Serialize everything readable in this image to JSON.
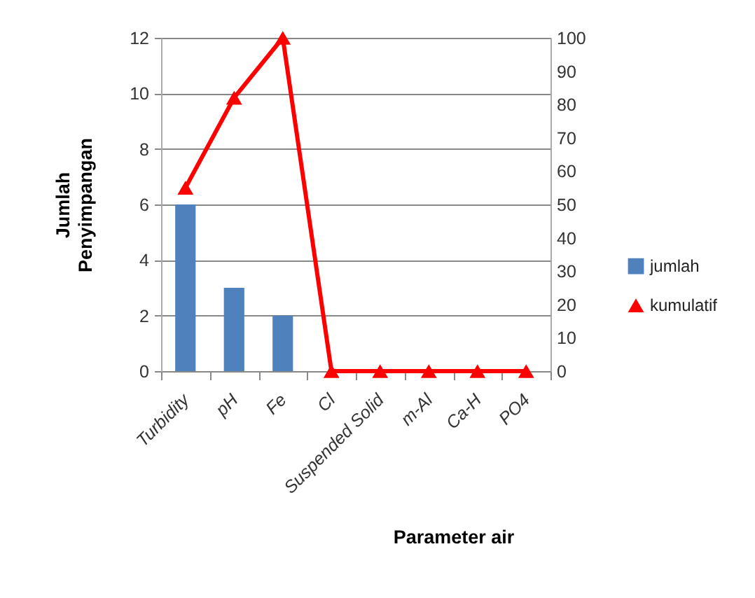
{
  "chart_data": {
    "type": "bar",
    "xlabel": "Parameter air",
    "ylabel": "Jumlah Penyimpangan",
    "categories": [
      "Turbidity",
      "pH",
      "Fe",
      "Cl",
      "Suspended Solid",
      "m-Al",
      "Ca-H",
      "PO4"
    ],
    "series": [
      {
        "name": "jumlah",
        "color": "#4f81bd",
        "values": [
          6,
          3,
          2,
          0,
          0,
          0,
          0,
          0
        ]
      },
      {
        "name": "kumulatif",
        "type": "line",
        "axis": "y2",
        "color": "#ff0000",
        "values": [
          55,
          82,
          100,
          0,
          0,
          0,
          0,
          0
        ]
      }
    ],
    "ylim": [
      0,
      12
    ],
    "yticks": [
      0,
      2,
      4,
      6,
      8,
      10,
      12
    ],
    "y2lim": [
      0,
      100
    ],
    "y2ticks": [
      0,
      10,
      20,
      30,
      40,
      50,
      60,
      70,
      80,
      90,
      100
    ],
    "grid": "y",
    "legend": "right",
    "marker": "triangle",
    "line_style": "solid"
  }
}
